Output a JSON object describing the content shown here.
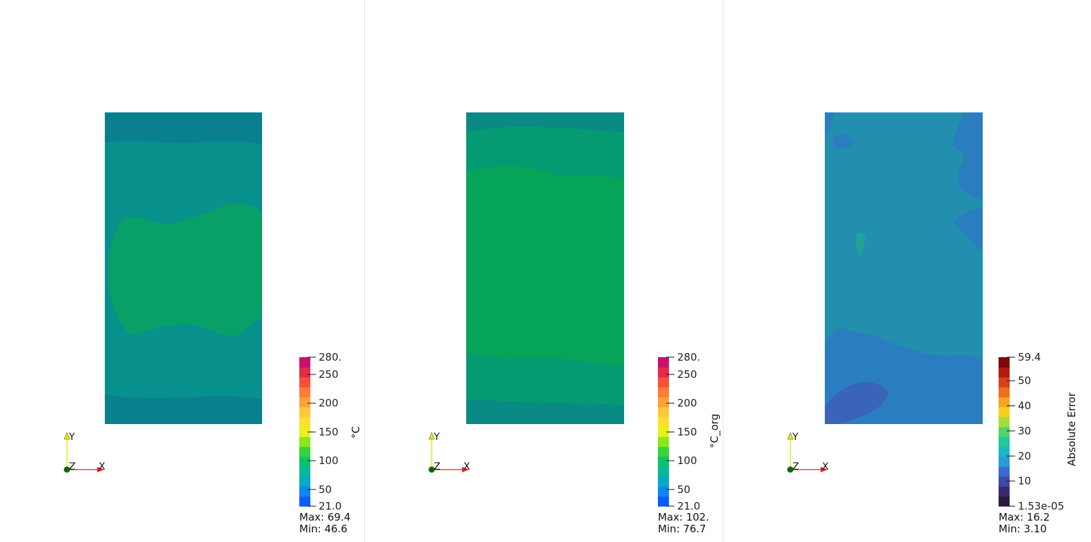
{
  "panels": [
    {
      "colorbar": {
        "title": "°C",
        "colormap": "temperature",
        "ticks": [
          "280.",
          "250",
          "200",
          "150",
          "100",
          "50",
          "21.0"
        ],
        "tick_values": [
          280,
          250,
          200,
          150,
          100,
          50,
          21
        ],
        "range": [
          21,
          280
        ],
        "max_label": "Max: 69.4",
        "min_label": "Min: 46.6"
      },
      "bands": [
        {
          "color": "#0a7f8e"
        },
        {
          "color": "#07908c"
        },
        {
          "color": "#08a067"
        },
        {
          "color": "#07908c"
        },
        {
          "color": "#0a7f8e"
        }
      ],
      "axes": {
        "y": "Y",
        "z": "Z",
        "x": "X"
      }
    },
    {
      "colorbar": {
        "title": "°C_org",
        "colormap": "temperature",
        "ticks": [
          "280.",
          "250",
          "200",
          "150",
          "100",
          "50",
          "21.0"
        ],
        "tick_values": [
          280,
          250,
          200,
          150,
          100,
          50,
          21
        ],
        "range": [
          21,
          280
        ],
        "max_label": "Max: 102.",
        "min_label": "Min: 76.7"
      },
      "bands": [
        {
          "color": "#0a8a84"
        },
        {
          "color": "#059a72"
        },
        {
          "color": "#06a458"
        },
        {
          "color": "#059a72"
        },
        {
          "color": "#0a8a84"
        }
      ],
      "axes": {
        "y": "Y",
        "z": "Z",
        "x": "X"
      }
    },
    {
      "colorbar": {
        "title": "Absolute Error",
        "colormap": "error",
        "ticks": [
          "59.4",
          "50",
          "40",
          "30",
          "20",
          "10",
          "1.53e-05"
        ],
        "tick_values": [
          59.4,
          50,
          40,
          30,
          20,
          10,
          1.53e-05
        ],
        "range": [
          1.53e-05,
          59.4
        ],
        "max_label": "Max: 16.2",
        "min_label": "Min: 3.10"
      },
      "bands": [
        {
          "color": "#228faf"
        },
        {
          "color": "#2a7ec0"
        },
        {
          "color": "#3a63ba"
        }
      ],
      "axes": {
        "y": "Y",
        "z": "Z",
        "x": "X"
      }
    }
  ],
  "colormaps": {
    "temperature": [
      "#0a5cff",
      "#0a88f5",
      "#07a9c8",
      "#08b89a",
      "#09c46b",
      "#3ad33a",
      "#8ee61f",
      "#e6f21a",
      "#ffe02a",
      "#ffc83a",
      "#ffa238",
      "#ff7c36",
      "#f7503a",
      "#e52a4a",
      "#c8126a"
    ],
    "error": [
      "#2a1a3a",
      "#3a2a6a",
      "#3b4aa8",
      "#3b6ad0",
      "#2a9ad8",
      "#19b8c2",
      "#20c99a",
      "#52d46a",
      "#a8dc3a",
      "#f2d21c",
      "#f6a51c",
      "#ef6f1c",
      "#d8401a",
      "#b01c10",
      "#7d0a06"
    ]
  }
}
